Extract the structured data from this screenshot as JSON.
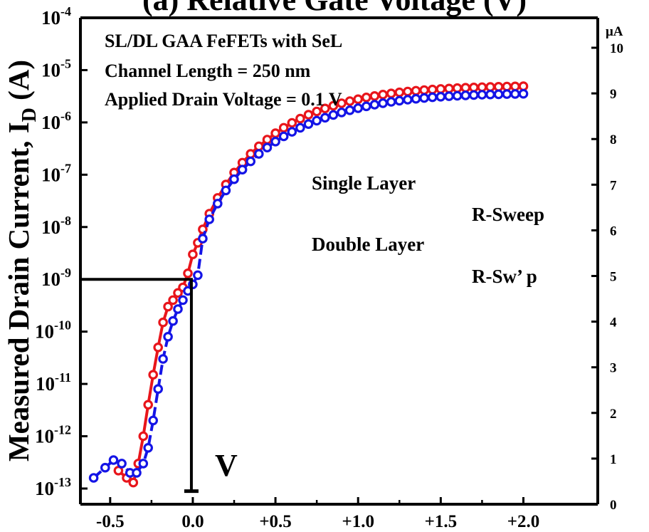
{
  "chart_data": {
    "type": "scatter",
    "title": "(a) Relative Gate Voltage (V)",
    "ylabel": "Measured Drain Current, I",
    "ylabel_subscript": "D",
    "ylabel_unit": " (A)",
    "right_axis_unit": "μA",
    "xlim": [
      -0.68,
      2.45
    ],
    "ylim_log10": [
      -13.3,
      -4.0
    ],
    "right_ylim": [
      0,
      10.5
    ],
    "x_ticks": [
      -0.5,
      0.0,
      0.5,
      1.0,
      1.5,
      2.0
    ],
    "x_tick_labels": [
      "-0.5",
      "0.0",
      "+0.5",
      "+1.0",
      "+1.5",
      "+2.0"
    ],
    "y_left_ticks": [
      {
        "exp": -4,
        "base": "10",
        "sup": "-4"
      },
      {
        "exp": -5,
        "base": "10",
        "sup": "-5"
      },
      {
        "exp": -6,
        "base": "10",
        "sup": "-6"
      },
      {
        "exp": -7,
        "base": "10",
        "sup": "-7"
      },
      {
        "exp": -8,
        "base": "10",
        "sup": "-8"
      },
      {
        "exp": -9,
        "base": "10",
        "sup": "-9"
      },
      {
        "exp": -10,
        "base": "10",
        "sup": "-10"
      },
      {
        "exp": -11,
        "base": "10",
        "sup": "-11"
      },
      {
        "exp": -12,
        "base": "10",
        "sup": "-12"
      },
      {
        "exp": -13,
        "base": "10",
        "sup": "-13"
      }
    ],
    "y_right_ticks": [
      "0",
      "1",
      "2",
      "3",
      "4",
      "5",
      "6",
      "7",
      "8",
      "9",
      "10"
    ],
    "annotations": [
      "SL/DL GAA FeFETs with SeL",
      "Channel Length = 250 nm",
      "Applied Drain Voltage = 0.1 V"
    ],
    "legend": [
      {
        "label": "Single Layer",
        "sub": "R-Sweep"
      },
      {
        "label": "Double Layer",
        "sub": "R-Sw’ p"
      }
    ],
    "vt_label": "V",
    "reference_level": {
      "x": 0.0,
      "y": 1e-09
    },
    "colors": {
      "single_layer": "#e8151b",
      "double_layer": "#1414e6",
      "axis": "#000000"
    },
    "series": [
      {
        "name": "Single Layer",
        "color": "#e8151b",
        "x": [
          -0.45,
          -0.4,
          -0.36,
          -0.33,
          -0.3,
          -0.27,
          -0.24,
          -0.21,
          -0.18,
          -0.15,
          -0.12,
          -0.09,
          -0.06,
          -0.03,
          0.0,
          0.03,
          0.06,
          0.1,
          0.15,
          0.2,
          0.25,
          0.3,
          0.35,
          0.4,
          0.45,
          0.5,
          0.55,
          0.6,
          0.65,
          0.7,
          0.75,
          0.8,
          0.85,
          0.9,
          0.95,
          1.0,
          1.05,
          1.1,
          1.15,
          1.2,
          1.25,
          1.3,
          1.35,
          1.4,
          1.45,
          1.5,
          1.55,
          1.6,
          1.65,
          1.7,
          1.75,
          1.8,
          1.85,
          1.9,
          1.95,
          2.0
        ],
        "y": [
          2.2e-13,
          1.6e-13,
          1.3e-13,
          3e-13,
          1e-12,
          4e-12,
          1.5e-11,
          5e-11,
          1.5e-10,
          3e-10,
          4e-10,
          5.5e-10,
          7e-10,
          1.3e-09,
          3e-09,
          5e-09,
          9e-09,
          1.8e-08,
          3.6e-08,
          6.5e-08,
          1.1e-07,
          1.7e-07,
          2.5e-07,
          3.5e-07,
          4.7e-07,
          6.2e-07,
          7.9e-07,
          9.8e-07,
          1.18e-06,
          1.4e-06,
          1.62e-06,
          1.85e-06,
          2.08e-06,
          2.32e-06,
          2.55e-06,
          2.78e-06,
          3e-06,
          3.2e-06,
          3.4e-06,
          3.58e-06,
          3.75e-06,
          3.9e-06,
          4.03e-06,
          4.15e-06,
          4.26e-06,
          4.36e-06,
          4.45e-06,
          4.53e-06,
          4.6e-06,
          4.66e-06,
          4.72e-06,
          4.77e-06,
          4.81e-06,
          4.85e-06,
          4.88e-06,
          4.91e-06
        ]
      },
      {
        "name": "Double Layer",
        "color": "#1414e6",
        "x": [
          -0.6,
          -0.53,
          -0.48,
          -0.43,
          -0.38,
          -0.34,
          -0.3,
          -0.27,
          -0.24,
          -0.21,
          -0.18,
          -0.15,
          -0.12,
          -0.09,
          -0.06,
          -0.03,
          0.0,
          0.03,
          0.06,
          0.1,
          0.15,
          0.2,
          0.25,
          0.3,
          0.35,
          0.4,
          0.45,
          0.5,
          0.55,
          0.6,
          0.65,
          0.7,
          0.75,
          0.8,
          0.85,
          0.9,
          0.95,
          1.0,
          1.05,
          1.1,
          1.15,
          1.2,
          1.25,
          1.3,
          1.35,
          1.4,
          1.45,
          1.5,
          1.55,
          1.6,
          1.65,
          1.7,
          1.75,
          1.8,
          1.85,
          1.9,
          1.95,
          2.0
        ],
        "y": [
          1.6e-13,
          2.5e-13,
          3.5e-13,
          3e-13,
          2e-13,
          2e-13,
          3e-13,
          6e-13,
          2e-12,
          8e-12,
          3e-11,
          8e-11,
          1.6e-10,
          2.7e-10,
          4e-10,
          6e-10,
          8e-10,
          1.2e-09,
          6e-09,
          1.4e-08,
          2.8e-08,
          5e-08,
          8.2e-08,
          1.25e-07,
          1.8e-07,
          2.5e-07,
          3.3e-07,
          4.3e-07,
          5.4e-07,
          6.6e-07,
          7.9e-07,
          9.3e-07,
          1.08e-06,
          1.23e-06,
          1.39e-06,
          1.55e-06,
          1.71e-06,
          1.87e-06,
          2.03e-06,
          2.18e-06,
          2.33e-06,
          2.47e-06,
          2.6e-06,
          2.72e-06,
          2.83e-06,
          2.93e-06,
          3.02e-06,
          3.1e-06,
          3.17e-06,
          3.23e-06,
          3.29e-06,
          3.34e-06,
          3.38e-06,
          3.42e-06,
          3.45e-06,
          3.48e-06,
          3.5e-06,
          3.52e-06
        ]
      }
    ]
  }
}
